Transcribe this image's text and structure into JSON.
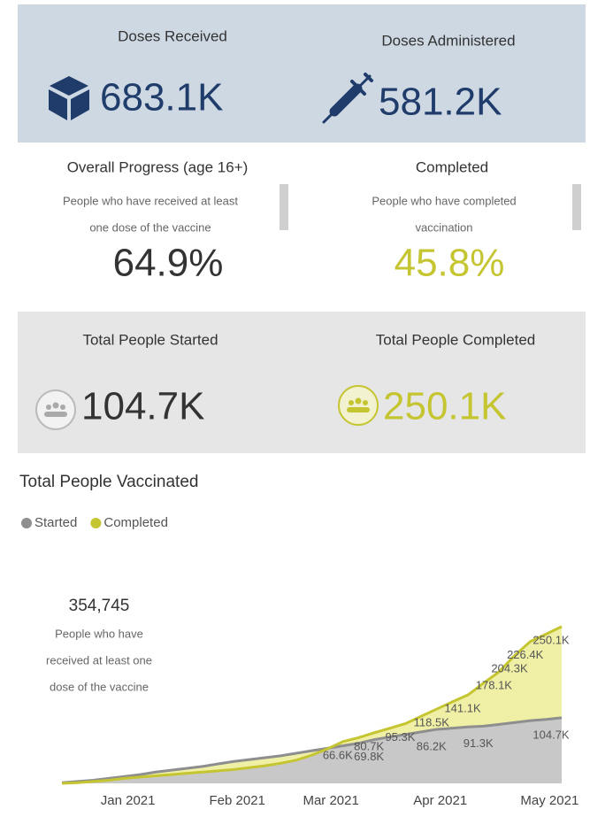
{
  "doses_received": {
    "label": "Doses Received",
    "value": "683.1K"
  },
  "doses_administered": {
    "label": "Doses Administered",
    "value": "581.2K"
  },
  "overall_progress": {
    "title": "Overall Progress (age 16+)",
    "description": [
      "People who have received at least",
      "one dose of the vaccine"
    ],
    "value": "64.9%"
  },
  "completed": {
    "title": "Completed",
    "description": [
      "People who have completed",
      "vaccination"
    ],
    "value": "45.8%"
  },
  "total_started": {
    "label": "Total People Started",
    "value": "104.7K"
  },
  "total_completed": {
    "label": "Total People Completed",
    "value": "250.1K"
  },
  "chart_data": {
    "type": "area",
    "stacked": true,
    "title": "Total People Vaccinated",
    "annotation": {
      "value": "354,745",
      "text": [
        "People who have",
        "received at least one",
        "dose of the vaccine"
      ]
    },
    "categories": [
      null,
      null,
      null,
      null,
      "Jan 2021",
      null,
      null,
      null,
      null,
      null,
      null,
      "Feb 2021",
      null,
      null,
      null,
      null,
      null,
      "Mar 2021",
      null,
      null,
      null,
      null,
      null,
      null,
      "Apr 2021",
      null,
      null,
      null,
      null,
      null,
      null,
      "May 2021",
      null
    ],
    "ylim": [
      0,
      360
    ],
    "series": [
      {
        "name": "Started",
        "color": "#8e8e8e",
        "fill": "#c8c8c8",
        "values": [
          1,
          3,
          5,
          8,
          11,
          14,
          18,
          21,
          24,
          27,
          31,
          35,
          38,
          41,
          44,
          48,
          52,
          56,
          60,
          64,
          69.8,
          74,
          78,
          82,
          86.2,
          88,
          90,
          91.3,
          94,
          97,
          100,
          102,
          104.7
        ],
        "value_labels": [
          null,
          null,
          null,
          null,
          null,
          null,
          null,
          null,
          null,
          null,
          null,
          null,
          null,
          null,
          null,
          null,
          null,
          null,
          null,
          null,
          "69.8K",
          null,
          null,
          null,
          "86.2K",
          null,
          null,
          "91.3K",
          null,
          null,
          null,
          null,
          "104.7K"
        ]
      },
      {
        "name": "Completed",
        "color": "#c5c532",
        "fill": "#efefa6",
        "values": [
          0,
          1,
          3,
          5,
          8,
          10,
          12,
          14,
          16,
          18,
          20,
          22,
          25,
          28,
          32,
          37,
          45,
          55,
          66.6,
          73,
          80.7,
          88,
          95.3,
          107,
          118.5,
          130,
          141.1,
          160,
          178.1,
          204.3,
          226.4,
          238,
          250.1
        ],
        "value_labels": [
          null,
          null,
          null,
          null,
          null,
          null,
          null,
          null,
          null,
          null,
          null,
          null,
          null,
          null,
          null,
          null,
          null,
          null,
          "66.6K",
          null,
          "80.7K",
          null,
          "95.3K",
          null,
          "118.5K",
          null,
          "141.1K",
          null,
          "178.1K",
          "204.3K",
          "226.4K",
          null,
          "250.1K"
        ]
      }
    ]
  }
}
